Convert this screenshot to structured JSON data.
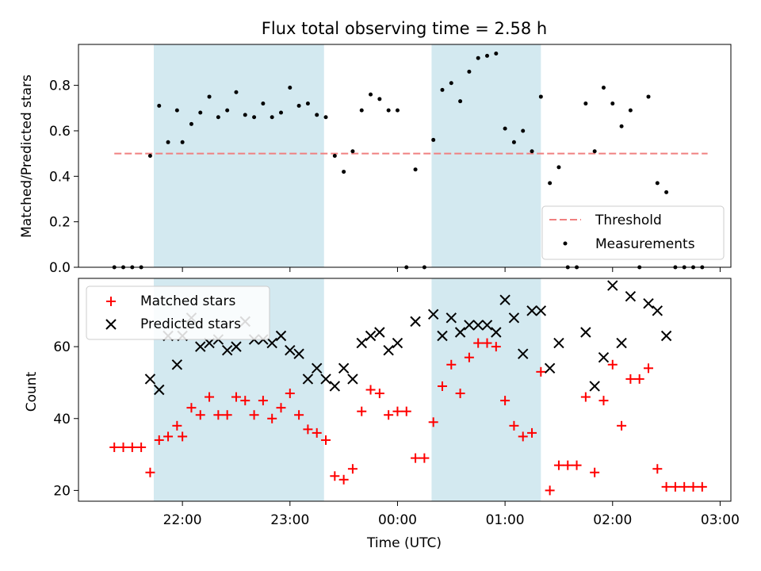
{
  "chart_data": [
    {
      "type": "scatter",
      "title": "Flux total observing time = 2.58 h",
      "xlabel": "",
      "ylabel": "Matched/Predicted stars",
      "xlim": [
        "21:02",
        "03:06"
      ],
      "ylim": [
        0,
        0.98
      ],
      "y_ticks": [
        0.0,
        0.2,
        0.4,
        0.6,
        0.8
      ],
      "y_tick_labels": [
        "0.0",
        "0.2",
        "0.4",
        "0.6",
        "0.8"
      ],
      "x_ticks": [
        "22:00",
        "23:00",
        "00:00",
        "01:00",
        "02:00",
        "03:00"
      ],
      "shaded_intervals": [
        [
          "21:44",
          "23:19"
        ],
        [
          "00:19",
          "01:20"
        ]
      ],
      "threshold": {
        "name": "Threshold",
        "y": 0.5,
        "x_range": [
          "21:22",
          "02:53"
        ],
        "color": "#f08080",
        "style": "dashed"
      },
      "series": [
        {
          "name": "Measurements",
          "marker": "dot",
          "color": "#000000",
          "points": [
            [
              "21:22",
              0
            ],
            [
              "21:27",
              0
            ],
            [
              "21:32",
              0
            ],
            [
              "21:37",
              0
            ],
            [
              "21:42",
              0.49
            ],
            [
              "21:47",
              0.71
            ],
            [
              "21:52",
              0.55
            ],
            [
              "21:57",
              0.69
            ],
            [
              "22:00",
              0.55
            ],
            [
              "22:05",
              0.63
            ],
            [
              "22:10",
              0.68
            ],
            [
              "22:15",
              0.75
            ],
            [
              "22:20",
              0.66
            ],
            [
              "22:25",
              0.69
            ],
            [
              "22:30",
              0.77
            ],
            [
              "22:35",
              0.67
            ],
            [
              "22:40",
              0.66
            ],
            [
              "22:45",
              0.72
            ],
            [
              "22:50",
              0.66
            ],
            [
              "22:55",
              0.68
            ],
            [
              "23:00",
              0.79
            ],
            [
              "23:05",
              0.71
            ],
            [
              "23:10",
              0.72
            ],
            [
              "23:15",
              0.67
            ],
            [
              "23:20",
              0.66
            ],
            [
              "23:25",
              0.49
            ],
            [
              "23:30",
              0.42
            ],
            [
              "23:35",
              0.51
            ],
            [
              "23:40",
              0.69
            ],
            [
              "23:45",
              0.76
            ],
            [
              "23:50",
              0.74
            ],
            [
              "23:55",
              0.69
            ],
            [
              "00:00",
              0.69
            ],
            [
              "00:05",
              0
            ],
            [
              "00:10",
              0.43
            ],
            [
              "00:15",
              0
            ],
            [
              "00:20",
              0.56
            ],
            [
              "00:25",
              0.78
            ],
            [
              "00:30",
              0.81
            ],
            [
              "00:35",
              0.73
            ],
            [
              "00:40",
              0.86
            ],
            [
              "00:45",
              0.92
            ],
            [
              "00:50",
              0.93
            ],
            [
              "00:55",
              0.94
            ],
            [
              "01:00",
              0.61
            ],
            [
              "01:05",
              0.55
            ],
            [
              "01:10",
              0.6
            ],
            [
              "01:15",
              0.51
            ],
            [
              "01:20",
              0.75
            ],
            [
              "01:25",
              0.37
            ],
            [
              "01:30",
              0.44
            ],
            [
              "01:35",
              0
            ],
            [
              "01:40",
              0
            ],
            [
              "01:45",
              0.72
            ],
            [
              "01:50",
              0.51
            ],
            [
              "01:55",
              0.79
            ],
            [
              "02:00",
              0.72
            ],
            [
              "02:05",
              0.62
            ],
            [
              "02:10",
              0.69
            ],
            [
              "02:15",
              0
            ],
            [
              "02:20",
              0.75
            ],
            [
              "02:25",
              0.37
            ],
            [
              "02:30",
              0.33
            ],
            [
              "02:35",
              0
            ],
            [
              "02:40",
              0
            ],
            [
              "02:45",
              0
            ],
            [
              "02:50",
              0
            ]
          ]
        }
      ],
      "legend": {
        "placement": "lower right",
        "entries": [
          "Threshold",
          "Measurements"
        ]
      }
    },
    {
      "type": "scatter",
      "title": "",
      "xlabel": "Time (UTC)",
      "ylabel": "Count",
      "xlim": [
        "21:02",
        "03:06"
      ],
      "ylim": [
        17,
        79
      ],
      "y_ticks": [
        20,
        40,
        60
      ],
      "y_tick_labels": [
        "20",
        "40",
        "60"
      ],
      "x_ticks": [
        "22:00",
        "23:00",
        "00:00",
        "01:00",
        "02:00",
        "03:00"
      ],
      "x_tick_labels": [
        "22:00",
        "23:00",
        "00:00",
        "01:00",
        "02:00",
        "03:00"
      ],
      "shaded_intervals": [
        [
          "21:44",
          "23:19"
        ],
        [
          "00:19",
          "01:20"
        ]
      ],
      "series": [
        {
          "name": "Matched stars",
          "marker": "plus",
          "color": "#ff0000",
          "points": [
            [
              "21:22",
              32
            ],
            [
              "21:27",
              32
            ],
            [
              "21:32",
              32
            ],
            [
              "21:37",
              32
            ],
            [
              "21:42",
              25
            ],
            [
              "21:47",
              34
            ],
            [
              "21:52",
              35
            ],
            [
              "21:57",
              38
            ],
            [
              "22:00",
              35
            ],
            [
              "22:05",
              43
            ],
            [
              "22:10",
              41
            ],
            [
              "22:15",
              46
            ],
            [
              "22:20",
              41
            ],
            [
              "22:25",
              41
            ],
            [
              "22:30",
              46
            ],
            [
              "22:35",
              45
            ],
            [
              "22:40",
              41
            ],
            [
              "22:45",
              45
            ],
            [
              "22:50",
              40
            ],
            [
              "22:55",
              43
            ],
            [
              "23:00",
              47
            ],
            [
              "23:05",
              41
            ],
            [
              "23:10",
              37
            ],
            [
              "23:15",
              36
            ],
            [
              "23:20",
              34
            ],
            [
              "23:25",
              24
            ],
            [
              "23:30",
              23
            ],
            [
              "23:35",
              26
            ],
            [
              "23:40",
              42
            ],
            [
              "23:45",
              48
            ],
            [
              "23:50",
              47
            ],
            [
              "23:55",
              41
            ],
            [
              "00:00",
              42
            ],
            [
              "00:05",
              42
            ],
            [
              "00:10",
              29
            ],
            [
              "00:15",
              29
            ],
            [
              "00:20",
              39
            ],
            [
              "00:25",
              49
            ],
            [
              "00:30",
              55
            ],
            [
              "00:35",
              47
            ],
            [
              "00:40",
              57
            ],
            [
              "00:45",
              61
            ],
            [
              "00:50",
              61
            ],
            [
              "00:55",
              60
            ],
            [
              "01:00",
              45
            ],
            [
              "01:05",
              38
            ],
            [
              "01:10",
              35
            ],
            [
              "01:15",
              36
            ],
            [
              "01:20",
              53
            ],
            [
              "01:25",
              20
            ],
            [
              "01:30",
              27
            ],
            [
              "01:35",
              27
            ],
            [
              "01:40",
              27
            ],
            [
              "01:45",
              46
            ],
            [
              "01:50",
              25
            ],
            [
              "01:55",
              45
            ],
            [
              "02:00",
              55
            ],
            [
              "02:05",
              38
            ],
            [
              "02:10",
              51
            ],
            [
              "02:15",
              51
            ],
            [
              "02:20",
              54
            ],
            [
              "02:25",
              26
            ],
            [
              "02:30",
              21
            ],
            [
              "02:35",
              21
            ],
            [
              "02:40",
              21
            ],
            [
              "02:45",
              21
            ],
            [
              "02:50",
              21
            ]
          ]
        },
        {
          "name": "Predicted stars",
          "marker": "x",
          "color": "#000000",
          "points": [
            [
              "21:42",
              51
            ],
            [
              "21:47",
              48
            ],
            [
              "21:52",
              63
            ],
            [
              "21:57",
              55
            ],
            [
              "22:00",
              63
            ],
            [
              "22:05",
              68
            ],
            [
              "22:10",
              60
            ],
            [
              "22:15",
              61
            ],
            [
              "22:20",
              62
            ],
            [
              "22:25",
              59
            ],
            [
              "22:30",
              60
            ],
            [
              "22:35",
              67
            ],
            [
              "22:40",
              62
            ],
            [
              "22:45",
              62
            ],
            [
              "22:50",
              61
            ],
            [
              "22:55",
              63
            ],
            [
              "23:00",
              59
            ],
            [
              "23:05",
              58
            ],
            [
              "23:10",
              51
            ],
            [
              "23:15",
              54
            ],
            [
              "23:20",
              51
            ],
            [
              "23:25",
              49
            ],
            [
              "23:30",
              54
            ],
            [
              "23:35",
              51
            ],
            [
              "23:40",
              61
            ],
            [
              "23:45",
              63
            ],
            [
              "23:50",
              64
            ],
            [
              "23:55",
              59
            ],
            [
              "00:00",
              61
            ],
            [
              "00:10",
              67
            ],
            [
              "00:20",
              69
            ],
            [
              "00:25",
              63
            ],
            [
              "00:30",
              68
            ],
            [
              "00:35",
              64
            ],
            [
              "00:40",
              66
            ],
            [
              "00:45",
              66
            ],
            [
              "00:50",
              66
            ],
            [
              "00:55",
              64
            ],
            [
              "01:00",
              73
            ],
            [
              "01:05",
              68
            ],
            [
              "01:10",
              58
            ],
            [
              "01:15",
              70
            ],
            [
              "01:20",
              70
            ],
            [
              "01:25",
              54
            ],
            [
              "01:30",
              61
            ],
            [
              "01:45",
              64
            ],
            [
              "01:50",
              49
            ],
            [
              "01:55",
              57
            ],
            [
              "02:00",
              77
            ],
            [
              "02:05",
              61
            ],
            [
              "02:10",
              74
            ],
            [
              "02:20",
              72
            ],
            [
              "02:25",
              70
            ],
            [
              "02:30",
              63
            ]
          ]
        }
      ],
      "legend": {
        "placement": "upper left",
        "entries": [
          "Matched stars",
          "Predicted stars"
        ]
      }
    }
  ],
  "colors": {
    "shade": "#d3e9f0",
    "threshold": "#f08080",
    "matched": "#ff0000",
    "predicted": "#000000",
    "measurement": "#000000"
  }
}
